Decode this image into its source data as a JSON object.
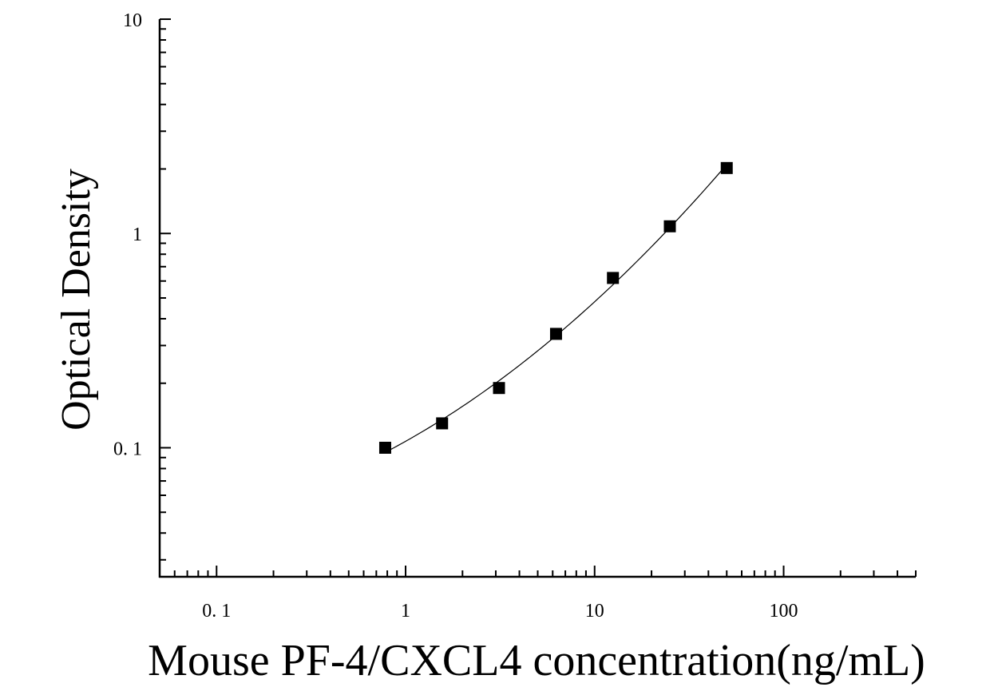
{
  "chart_data": {
    "type": "scatter",
    "xlabel": "Mouse PF-4/CXCL4 concentration(ng/mL)",
    "ylabel": "Optical Density",
    "xscale": "log",
    "yscale": "log",
    "xlim": [
      0.05,
      500
    ],
    "ylim": [
      0.025,
      10
    ],
    "x_ticks": [
      0.1,
      1,
      10,
      100
    ],
    "x_tick_labels": [
      "0. 1",
      "1",
      "10",
      "100"
    ],
    "y_ticks": [
      0.1,
      1,
      10
    ],
    "y_tick_labels": [
      "0. 1",
      "1",
      "10"
    ],
    "grid": false,
    "series": [
      {
        "marker": "square",
        "color": "#000000",
        "x": [
          0.78,
          1.56,
          3.12,
          6.25,
          12.5,
          25,
          50
        ],
        "y": [
          0.1,
          0.13,
          0.19,
          0.34,
          0.62,
          1.08,
          2.02
        ],
        "fit_line": true
      }
    ]
  }
}
